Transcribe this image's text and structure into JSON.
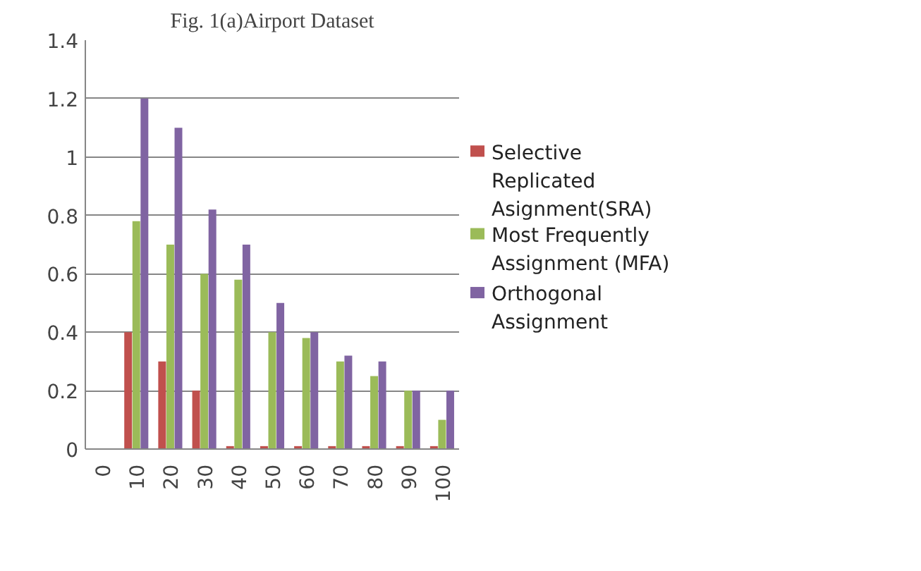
{
  "chart_data": {
    "type": "bar",
    "title": "Fig. 1(a)Airport Dataset",
    "categories": [
      "0",
      "10",
      "20",
      "30",
      "40",
      "50",
      "60",
      "70",
      "80",
      "90",
      "100"
    ],
    "series": [
      {
        "name": "Selective Replicated Asignment(SRA)",
        "color": "#c0504d",
        "values": [
          null,
          0.4,
          0.3,
          0.2,
          0.01,
          0.01,
          0.01,
          0.01,
          0.01,
          0.01,
          0.01
        ]
      },
      {
        "name": "Most Frequently Assignment (MFA)",
        "color": "#9bbb59",
        "values": [
          null,
          0.78,
          0.7,
          0.6,
          0.58,
          0.4,
          0.38,
          0.3,
          0.25,
          0.2,
          0.1
        ]
      },
      {
        "name": "Orthogonal Assignment",
        "color": "#8064a2",
        "values": [
          null,
          1.2,
          1.1,
          0.82,
          0.7,
          0.5,
          0.4,
          0.32,
          0.3,
          0.2,
          0.2
        ]
      }
    ],
    "ylim": [
      0,
      1.4
    ],
    "yticks": [
      0,
      0.2,
      0.4,
      0.6,
      0.8,
      1,
      1.2,
      1.4
    ],
    "grid": "y",
    "legend": "right"
  }
}
